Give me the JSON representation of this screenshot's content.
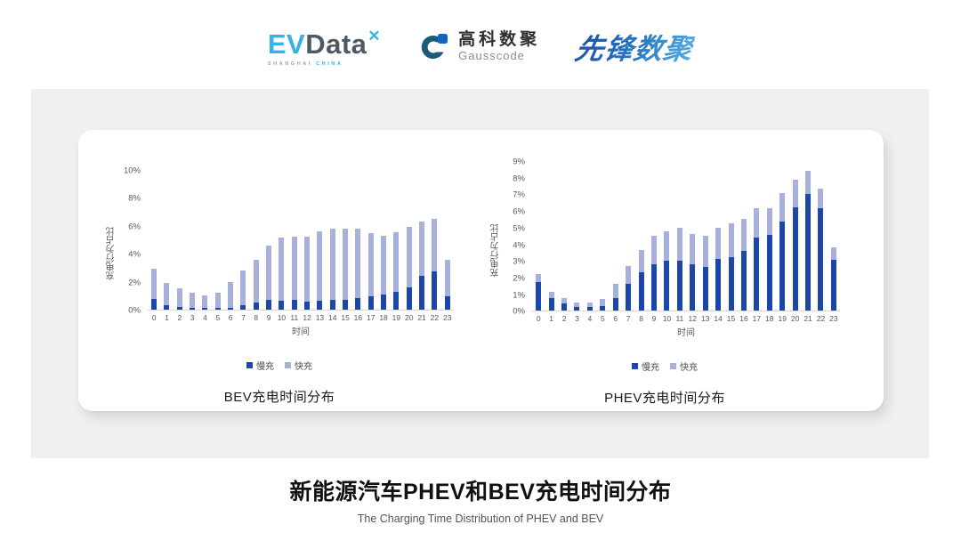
{
  "header": {
    "evdata": {
      "ev": "EV",
      "data": "Data",
      "x_mark": "✕",
      "sub_left": "SHANGHAI",
      "sub_right": "CHINA"
    },
    "gausscode": {
      "cn": "高科数聚",
      "en": "Gausscode"
    },
    "pioneer": {
      "text": "先锋数聚"
    }
  },
  "colors": {
    "slow_charge": "#1c46a8",
    "fast_charge": "#a8b1db",
    "panel_bg": "#f0f0f1",
    "evdata_blue": "#35b2e6",
    "gauss_navy": "#1d5a78",
    "gauss_blue": "#1565c0"
  },
  "chart_data": [
    {
      "type": "bar",
      "stacked": true,
      "title": "BEV充电时间分布",
      "xlabel": "时间",
      "ylabel": "充电行为占比",
      "ylim": [
        0,
        10
      ],
      "ytick_step": 2,
      "ytick_suffix": "%",
      "legend_position": "bottom",
      "grid": false,
      "categories": [
        0,
        1,
        2,
        3,
        4,
        5,
        6,
        7,
        8,
        9,
        10,
        11,
        12,
        13,
        14,
        15,
        16,
        17,
        18,
        19,
        20,
        21,
        22,
        23
      ],
      "series": [
        {
          "name": "慢充",
          "color": "#1c46a8",
          "values": [
            0.75,
            0.35,
            0.2,
            0.1,
            0.1,
            0.1,
            0.15,
            0.35,
            0.5,
            0.7,
            0.65,
            0.7,
            0.6,
            0.65,
            0.7,
            0.7,
            0.8,
            0.95,
            1.1,
            1.3,
            1.6,
            2.4,
            2.75,
            0.95
          ]
        },
        {
          "name": "快充",
          "color": "#a8b1db",
          "values": [
            2.15,
            1.55,
            1.3,
            1.1,
            0.95,
            1.1,
            1.85,
            2.45,
            3.05,
            3.9,
            4.5,
            4.5,
            4.6,
            4.95,
            5.1,
            5.1,
            5.0,
            4.5,
            4.2,
            4.25,
            4.3,
            3.9,
            3.75,
            2.6
          ]
        }
      ]
    },
    {
      "type": "bar",
      "stacked": true,
      "title": "PHEV充电时间分布",
      "xlabel": "时间",
      "ylabel": "充电行为占比",
      "ylim": [
        0,
        9
      ],
      "ytick_step": 1,
      "ytick_suffix": "%",
      "legend_position": "bottom",
      "grid": false,
      "categories": [
        0,
        1,
        2,
        3,
        4,
        5,
        6,
        7,
        8,
        9,
        10,
        11,
        12,
        13,
        14,
        15,
        16,
        17,
        18,
        19,
        20,
        21,
        22,
        23
      ],
      "series": [
        {
          "name": "慢充",
          "color": "#1c46a8",
          "values": [
            1.75,
            0.75,
            0.45,
            0.25,
            0.25,
            0.3,
            0.75,
            1.6,
            2.3,
            2.8,
            3.0,
            3.0,
            2.8,
            2.65,
            3.1,
            3.25,
            3.6,
            4.4,
            4.55,
            5.35,
            6.2,
            7.0,
            6.15,
            3.05
          ]
        },
        {
          "name": "快充",
          "color": "#a8b1db",
          "values": [
            0.45,
            0.4,
            0.3,
            0.25,
            0.25,
            0.4,
            0.85,
            1.1,
            1.35,
            1.7,
            1.8,
            2.0,
            1.8,
            1.85,
            1.9,
            2.0,
            1.9,
            1.75,
            1.6,
            1.75,
            1.7,
            1.4,
            1.2,
            0.75
          ]
        }
      ]
    }
  ],
  "footer": {
    "title": "新能源汽车PHEV和BEV充电时间分布",
    "subtitle": "The Charging Time Distribution of PHEV and BEV"
  }
}
